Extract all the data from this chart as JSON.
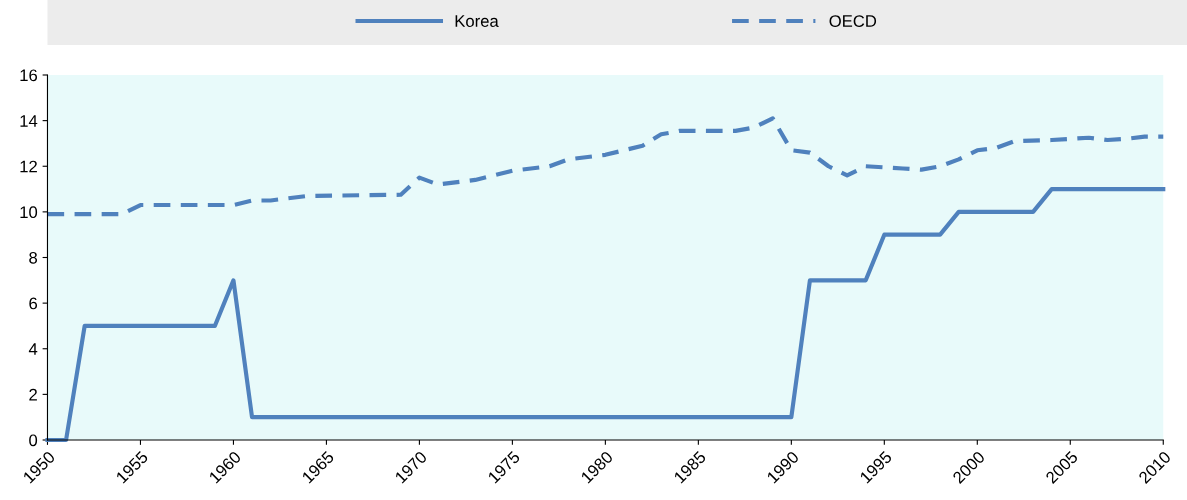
{
  "chart_data": {
    "type": "line",
    "legend": "top",
    "grid": false,
    "marker": "none",
    "xlim": [
      1950,
      2010
    ],
    "xticks": [
      1950,
      1955,
      1960,
      1965,
      1970,
      1975,
      1980,
      1985,
      1990,
      1995,
      2000,
      2005,
      2010
    ],
    "ylim": [
      0,
      16
    ],
    "yticks": [
      0,
      2,
      4,
      6,
      8,
      10,
      12,
      14,
      16
    ],
    "series": [
      {
        "name": "Korea",
        "color": "#4f81bd",
        "line_style": "solid",
        "x": [
          1950,
          1951,
          1952,
          1959,
          1960,
          1961,
          1990,
          1991,
          1994,
          1995,
          1998,
          1999,
          2003,
          2004,
          2010
        ],
        "values": [
          0,
          0,
          5,
          5,
          7,
          1,
          1,
          7,
          7,
          9,
          9,
          10,
          10,
          11,
          11
        ]
      },
      {
        "name": "OECD",
        "color": "#4f81bd",
        "line_style": "dashed",
        "x": [
          1950,
          1954,
          1955,
          1960,
          1961,
          1962,
          1964,
          1969,
          1970,
          1971,
          1973,
          1975,
          1976,
          1977,
          1978,
          1980,
          1982,
          1983,
          1984,
          1987,
          1988,
          1989,
          1990,
          1991,
          1992,
          1993,
          1994,
          1996,
          1997,
          1998,
          1999,
          2000,
          2001,
          2002,
          2004,
          2006,
          2007,
          2008,
          2009,
          2010
        ],
        "values": [
          9.9,
          9.9,
          10.3,
          10.3,
          10.5,
          10.5,
          10.7,
          10.75,
          11.5,
          11.2,
          11.4,
          11.8,
          11.9,
          12.0,
          12.3,
          12.5,
          12.9,
          13.4,
          13.55,
          13.55,
          13.7,
          14.1,
          12.7,
          12.6,
          12.0,
          11.6,
          12.0,
          11.9,
          11.85,
          12.0,
          12.3,
          12.7,
          12.8,
          13.1,
          13.15,
          13.25,
          13.15,
          13.2,
          13.3,
          13.3
        ]
      }
    ]
  }
}
